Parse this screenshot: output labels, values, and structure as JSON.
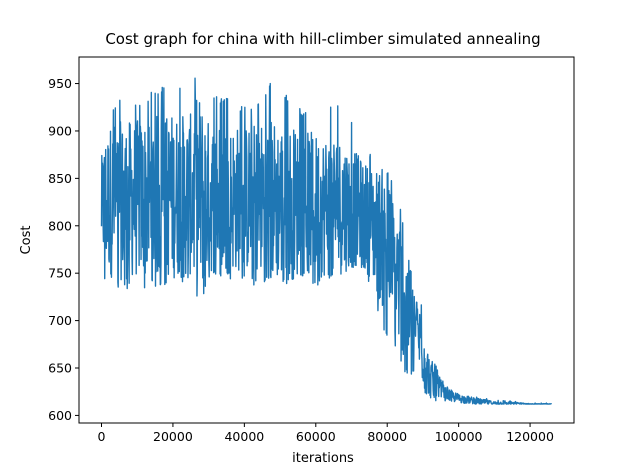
{
  "chart_data": {
    "type": "line",
    "title": "Cost graph for china with hill-climber simulated annealing",
    "xlabel": "iterations",
    "ylabel": "Cost",
    "xlim": [
      -6300,
      132300
    ],
    "ylim": [
      592,
      978
    ],
    "xticks": [
      0,
      20000,
      40000,
      60000,
      80000,
      100000,
      120000
    ],
    "xtick_labels": [
      "0",
      "20000",
      "40000",
      "60000",
      "80000",
      "100000",
      "120000"
    ],
    "yticks": [
      600,
      650,
      700,
      750,
      800,
      850,
      900,
      950
    ],
    "ytick_labels": [
      "600",
      "650",
      "700",
      "750",
      "800",
      "850",
      "900",
      "950"
    ],
    "grid": false,
    "color": "#1f77b4",
    "series": [
      {
        "name": "",
        "envelope": {
          "x": [
            0,
            1000,
            3000,
            5000,
            10000,
            15000,
            20000,
            25000,
            27000,
            30000,
            35000,
            40000,
            45000,
            47000,
            50000,
            55000,
            60000,
            65000,
            70000,
            72000,
            75000,
            78000,
            80000,
            82000,
            84000,
            86000,
            88000,
            90000,
            91000,
            92000,
            94000,
            96000,
            100000,
            105000,
            110000,
            115000,
            120000,
            126000
          ],
          "upper": [
            870,
            915,
            925,
            935,
            930,
            945,
            950,
            945,
            967,
            940,
            935,
            925,
            935,
            955,
            945,
            925,
            915,
            930,
            915,
            900,
            880,
            870,
            860,
            840,
            818,
            770,
            720,
            722,
            690,
            670,
            652,
            632,
            624,
            620,
            616,
            615,
            613,
            613
          ],
          "lower": [
            745,
            740,
            725,
            735,
            730,
            735,
            740,
            740,
            700,
            745,
            745,
            740,
            735,
            745,
            740,
            735,
            735,
            745,
            755,
            760,
            740,
            700,
            680,
            670,
            650,
            640,
            640,
            628,
            620,
            617,
            615,
            614,
            613,
            612,
            612,
            612,
            612,
            612
          ],
          "mean": [
            820,
            825,
            828,
            826,
            828,
            830,
            832,
            832,
            832,
            830,
            830,
            828,
            828,
            828,
            826,
            824,
            822,
            822,
            818,
            815,
            805,
            790,
            775,
            755,
            735,
            710,
            690,
            670,
            650,
            640,
            630,
            623,
            618,
            615,
            613,
            613,
            612,
            612
          ]
        }
      }
    ]
  }
}
